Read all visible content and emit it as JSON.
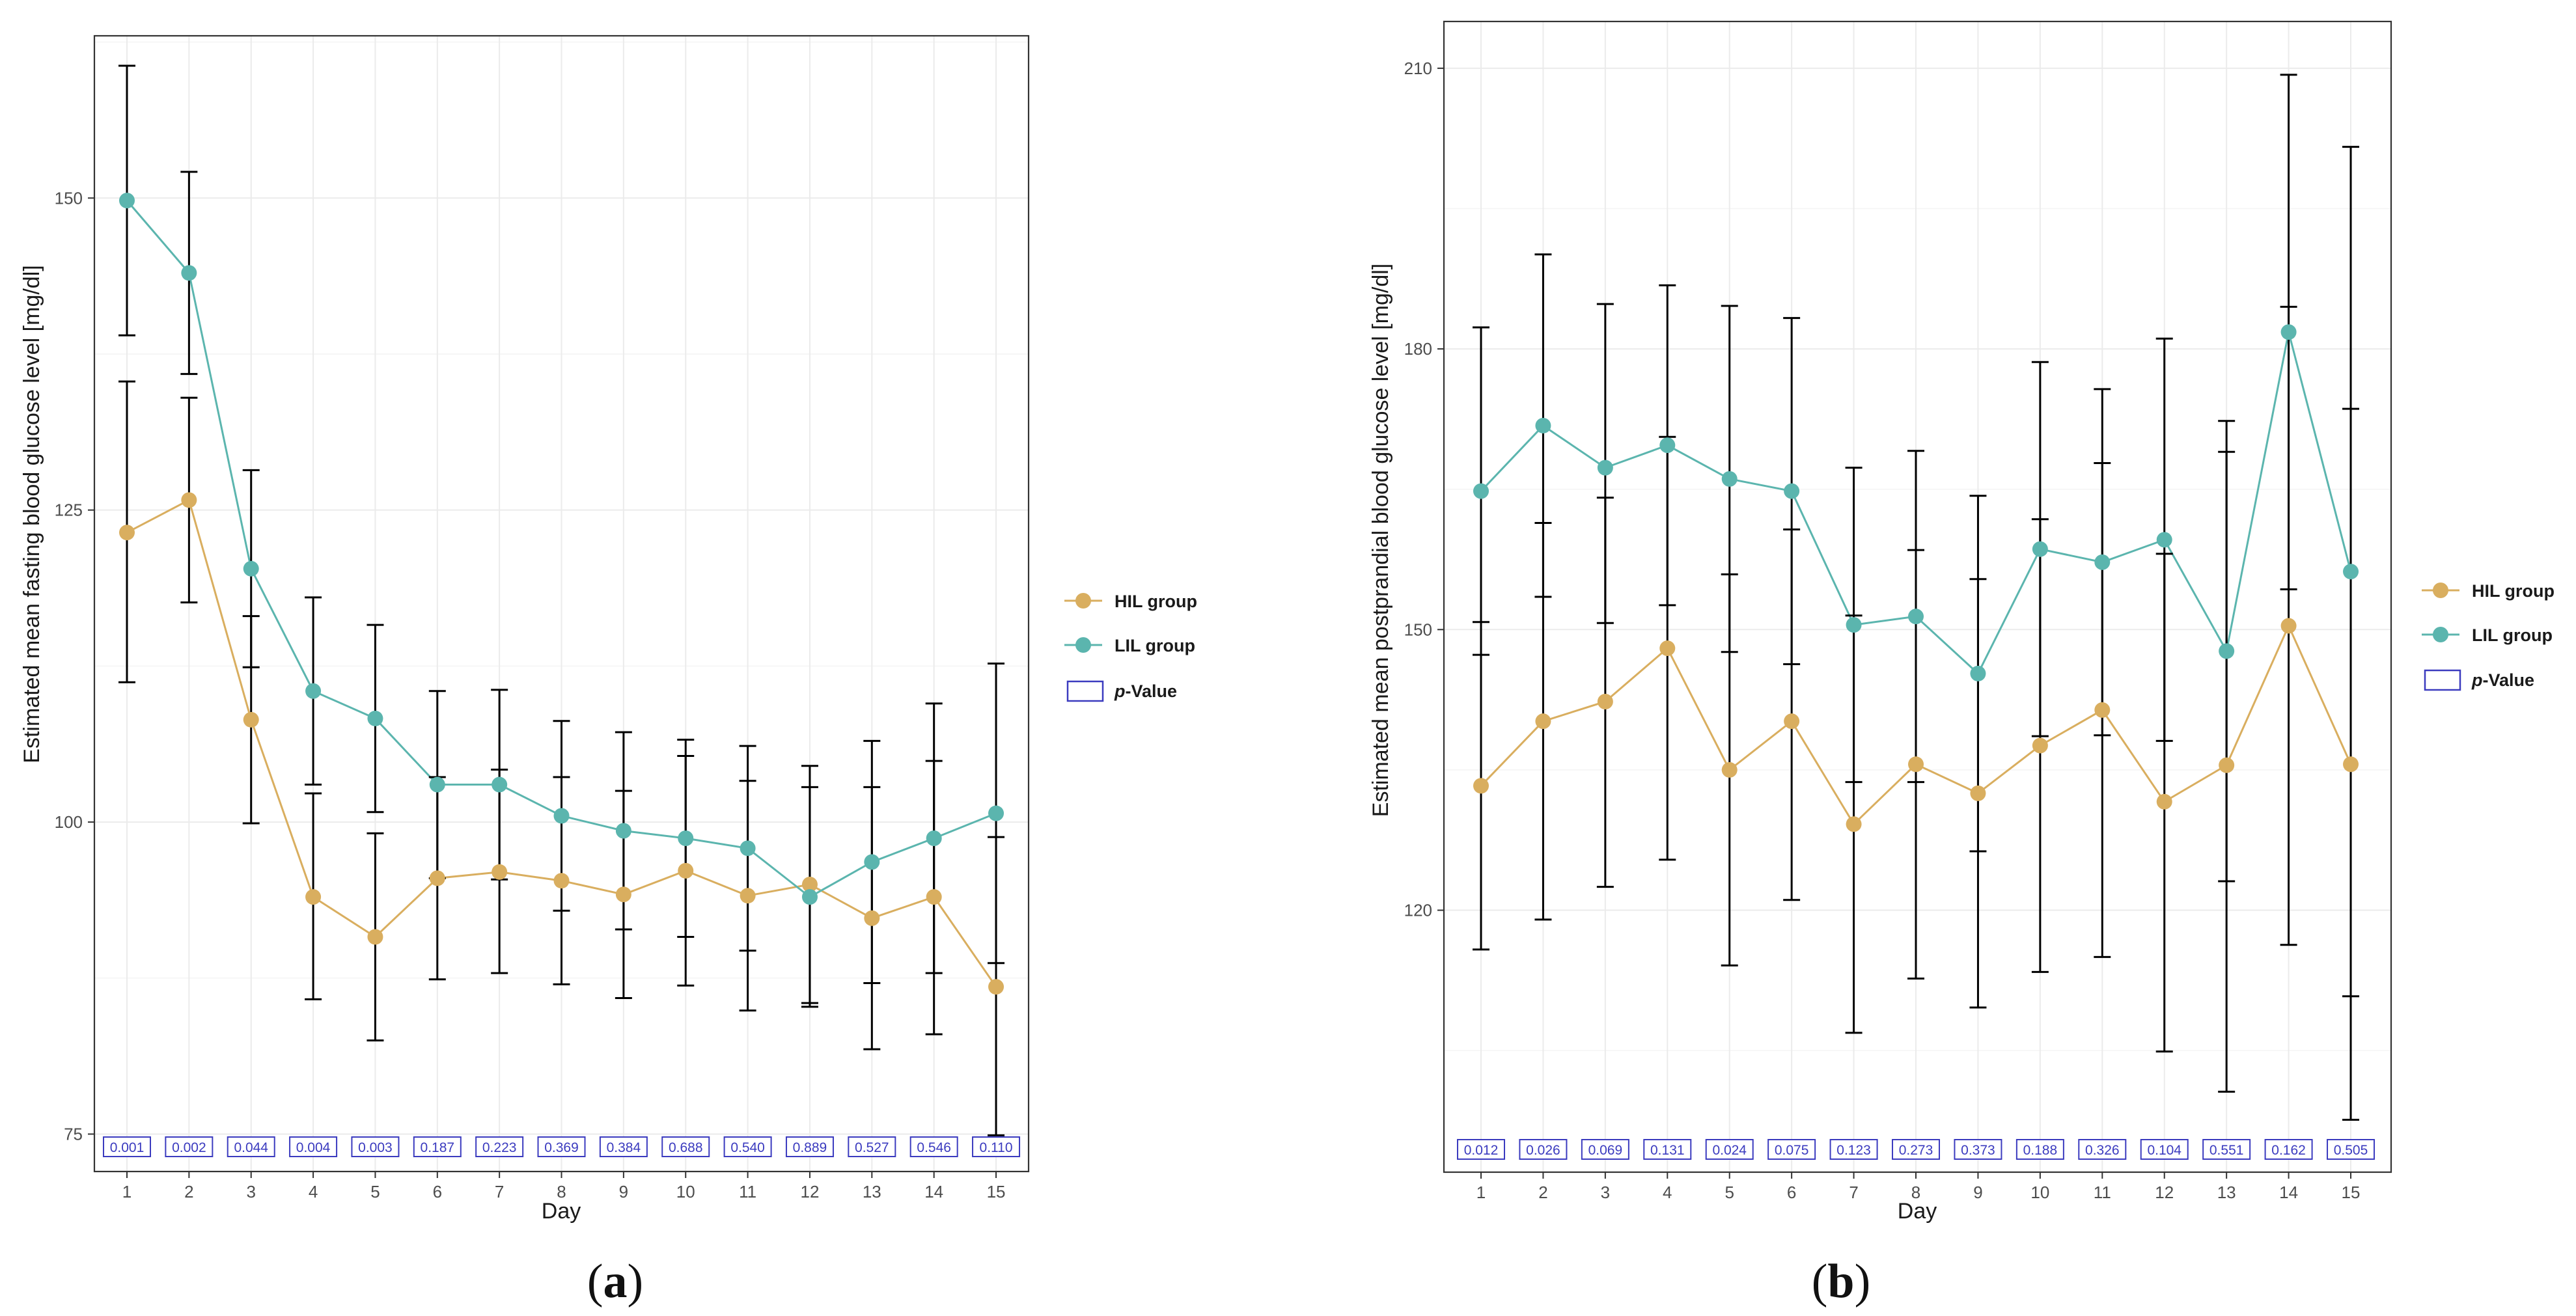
{
  "colors": {
    "hil": "#D9AE5F",
    "lil": "#5BB5AE",
    "pvalue_box": "#3B3BBF",
    "error_bar": "#000000",
    "grid": "#EBEBEB"
  },
  "legend": {
    "hil_label": "HIL group",
    "lil_label": "LIL group",
    "pvalue_label_italic": "p",
    "pvalue_label_rest": "-Value"
  },
  "chart_data": [
    {
      "type": "line",
      "panel_label": "a",
      "xlabel": "Day",
      "ylabel": "Estimated mean fasting blood glucose level [mg/dl]",
      "x": [
        1,
        2,
        3,
        4,
        5,
        6,
        7,
        8,
        9,
        10,
        11,
        12,
        13,
        14,
        15
      ],
      "ylim": [
        72,
        163
      ],
      "yticks": [
        75,
        100,
        125,
        150
      ],
      "series": [
        {
          "name": "HIL group",
          "values": [
            123.2,
            125.8,
            108.2,
            94.0,
            90.8,
            95.5,
            96.0,
            95.3,
            94.2,
            96.1,
            94.1,
            95.0,
            92.3,
            94.0,
            86.8
          ],
          "upper": [
            135.3,
            134.0,
            116.5,
            102.3,
            99.1,
            103.6,
            104.2,
            103.6,
            102.5,
            105.3,
            103.3,
            104.5,
            102.8,
            104.9,
            98.8
          ],
          "lower": [
            111.2,
            117.6,
            99.9,
            85.8,
            82.5,
            87.4,
            87.9,
            87.0,
            85.9,
            86.9,
            84.9,
            85.5,
            81.8,
            83.0,
            74.9
          ]
        },
        {
          "name": "LIL group",
          "values": [
            149.8,
            144.0,
            120.3,
            110.5,
            108.3,
            103.0,
            103.0,
            100.5,
            99.3,
            98.7,
            97.9,
            94.0,
            96.8,
            98.7,
            100.7
          ],
          "upper": [
            160.6,
            152.1,
            128.2,
            118.0,
            115.8,
            110.5,
            110.6,
            108.1,
            107.2,
            106.6,
            106.1,
            102.8,
            106.5,
            109.5,
            112.7
          ],
          "lower": [
            139.0,
            135.9,
            112.4,
            103.0,
            100.8,
            95.5,
            95.4,
            92.9,
            91.4,
            90.8,
            89.7,
            85.2,
            87.1,
            87.9,
            88.7
          ]
        }
      ],
      "p_values": [
        "0.001",
        "0.002",
        "0.044",
        "0.004",
        "0.003",
        "0.187",
        "0.223",
        "0.369",
        "0.384",
        "0.688",
        "0.540",
        "0.889",
        "0.527",
        "0.546",
        "0.110"
      ]
    },
    {
      "type": "line",
      "panel_label": "b",
      "xlabel": "Day",
      "ylabel": "Estimated mean postprandial blood glucose level [mg/dl]",
      "x": [
        1,
        2,
        3,
        4,
        5,
        6,
        7,
        8,
        9,
        10,
        11,
        12,
        13,
        14,
        15
      ],
      "ylim": [
        92,
        215
      ],
      "yticks": [
        120,
        150,
        180,
        210
      ],
      "series": [
        {
          "name": "HIL group",
          "values": [
            133.3,
            140.2,
            142.3,
            148.0,
            135.0,
            140.2,
            129.2,
            135.6,
            132.5,
            137.6,
            141.4,
            131.6,
            135.5,
            150.4,
            135.6
          ],
          "upper": [
            150.8,
            161.4,
            164.1,
            170.6,
            155.9,
            160.7,
            151.5,
            158.5,
            155.4,
            161.8,
            167.8,
            158.1,
            169.0,
            184.5,
            173.6
          ],
          "lower": [
            115.8,
            119.0,
            122.5,
            125.4,
            114.1,
            121.1,
            106.9,
            112.7,
            109.6,
            113.4,
            115.0,
            104.9,
            100.6,
            116.3,
            97.6
          ]
        },
        {
          "name": "LIL group",
          "values": [
            164.8,
            171.8,
            167.3,
            169.7,
            166.1,
            164.8,
            150.5,
            151.4,
            145.3,
            158.6,
            157.2,
            159.6,
            147.7,
            181.8,
            156.2
          ],
          "upper": [
            182.3,
            190.1,
            184.8,
            186.8,
            184.6,
            183.3,
            167.3,
            169.1,
            164.3,
            178.6,
            175.7,
            181.1,
            172.3,
            209.3,
            201.6
          ],
          "lower": [
            147.3,
            153.5,
            150.7,
            152.6,
            147.6,
            146.3,
            133.7,
            133.7,
            126.3,
            138.6,
            138.7,
            138.1,
            123.1,
            154.3,
            110.8
          ]
        }
      ],
      "p_values": [
        "0.012",
        "0.026",
        "0.069",
        "0.131",
        "0.024",
        "0.075",
        "0.123",
        "0.273",
        "0.373",
        "0.188",
        "0.326",
        "0.104",
        "0.551",
        "0.162",
        "0.505"
      ]
    }
  ]
}
